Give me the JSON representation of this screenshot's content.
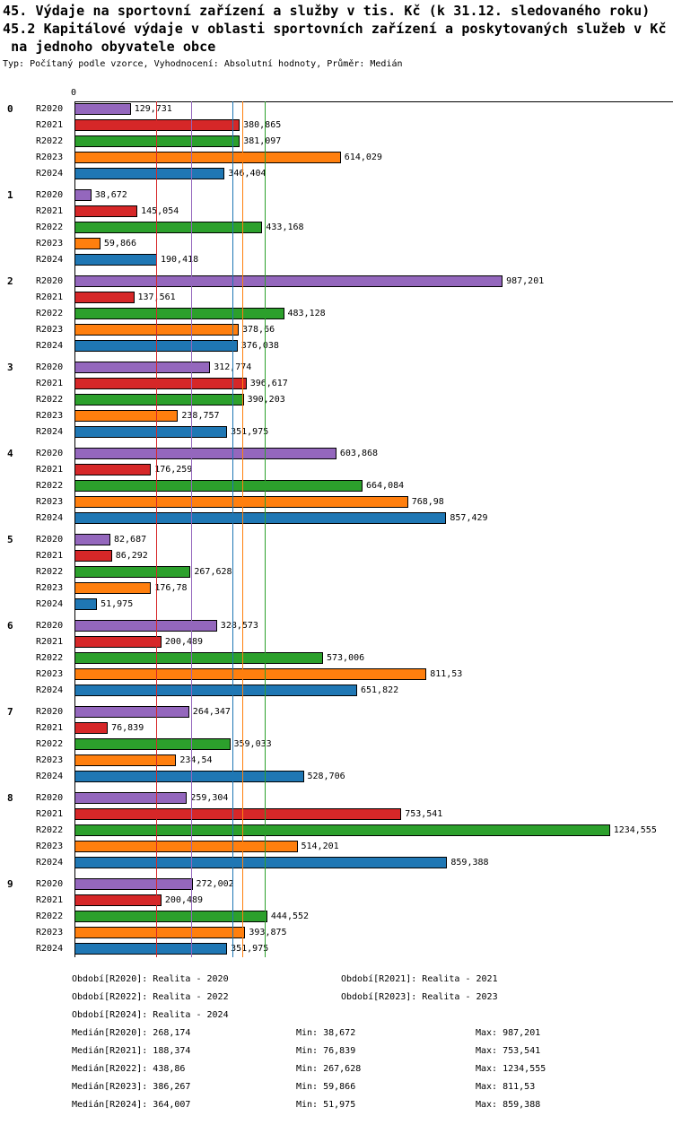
{
  "header": {
    "title": "45. Výdaje na sportovní zařízení a služby v tis. Kč (k 31.12. sledovaného roku)",
    "subtitle": "45.2 Kapitálové výdaje v oblasti sportovních zařízení a poskytovaných služeb v Kč",
    "subtitle2": " na jednoho obyvatele obce",
    "meta": "Typ: Počítaný podle vzorce, Vyhodnocení: Absolutní hodnoty, Průměr: Medián"
  },
  "chart_data": {
    "type": "bar",
    "orientation": "horizontal",
    "x_axis_zero_label": "0",
    "xlim": [
      0,
      1380
    ],
    "grid": false,
    "legend_position": "bottom",
    "categories": [
      "0",
      "1",
      "2",
      "3",
      "4",
      "5",
      "6",
      "7",
      "8",
      "9"
    ],
    "series": [
      {
        "name": "R2020",
        "period_label": "Realita - 2020",
        "color": "#9467bd",
        "values": [
          129.731,
          38.672,
          987.201,
          312.774,
          603.868,
          82.687,
          328.573,
          264.347,
          259.304,
          272.002
        ],
        "labels": [
          "129,731",
          "38,672",
          "987,201",
          "312,774",
          "603,868",
          "82,687",
          "328,573",
          "264,347",
          "259,304",
          "272,002"
        ],
        "median": 268.174
      },
      {
        "name": "R2021",
        "period_label": "Realita - 2021",
        "color": "#d62728",
        "values": [
          380.865,
          145.054,
          137.561,
          396.617,
          176.259,
          86.292,
          200.489,
          76.839,
          753.541,
          200.489
        ],
        "labels": [
          "380,865",
          "145,054",
          "137,561",
          "396,617",
          "176,259",
          "86,292",
          "200,489",
          "76,839",
          "753,541",
          "200,489"
        ],
        "median": 188.374
      },
      {
        "name": "R2022",
        "period_label": "Realita - 2022",
        "color": "#2ca02c",
        "values": [
          381.097,
          433.168,
          483.128,
          390.203,
          664.084,
          267.628,
          573.006,
          359.033,
          1234.555,
          444.552
        ],
        "labels": [
          "381,097",
          "433,168",
          "483,128",
          "390,203",
          "664,084",
          "267,628",
          "573,006",
          "359,033",
          "1234,555",
          "444,552"
        ],
        "median": 438.86
      },
      {
        "name": "R2023",
        "period_label": "Realita - 2023",
        "color": "#ff7f0e",
        "values": [
          614.029,
          59.866,
          378.66,
          238.757,
          768.98,
          176.78,
          811.53,
          234.54,
          514.201,
          393.875
        ],
        "labels": [
          "614,029",
          "59,866",
          "378,66",
          "238,757",
          "768,98",
          "176,78",
          "811,53",
          "234,54",
          "514,201",
          "393,875"
        ],
        "median": 386.267
      },
      {
        "name": "R2024",
        "period_label": "Realita - 2024",
        "color": "#1f77b4",
        "values": [
          346.404,
          190.418,
          376.038,
          351.975,
          857.429,
          51.975,
          651.822,
          528.706,
          859.388,
          351.975
        ],
        "labels": [
          "346,404",
          "190,418",
          "376,038",
          "351,975",
          "857,429",
          "51,975",
          "651,822",
          "528,706",
          "859,388",
          "351,975"
        ],
        "median": 364.007
      }
    ]
  },
  "legend": {
    "period_rows": [
      [
        "Období[R2020]: Realita - 2020",
        "Období[R2021]: Realita - 2021"
      ],
      [
        "Období[R2022]: Realita - 2022",
        "Období[R2023]: Realita - 2023"
      ],
      [
        "Období[R2024]: Realita - 2024"
      ]
    ],
    "stat_rows": [
      [
        "Medián[R2020]: 268,174",
        "Min: 38,672",
        "Max: 987,201"
      ],
      [
        "Medián[R2021]: 188,374",
        "Min: 76,839",
        "Max: 753,541"
      ],
      [
        "Medián[R2022]: 438,86",
        "Min: 267,628",
        "Max: 1234,555"
      ],
      [
        "Medián[R2023]: 386,267",
        "Min: 59,866",
        "Max: 811,53"
      ],
      [
        "Medián[R2024]: 364,007",
        "Min: 51,975",
        "Max: 859,388"
      ]
    ]
  }
}
